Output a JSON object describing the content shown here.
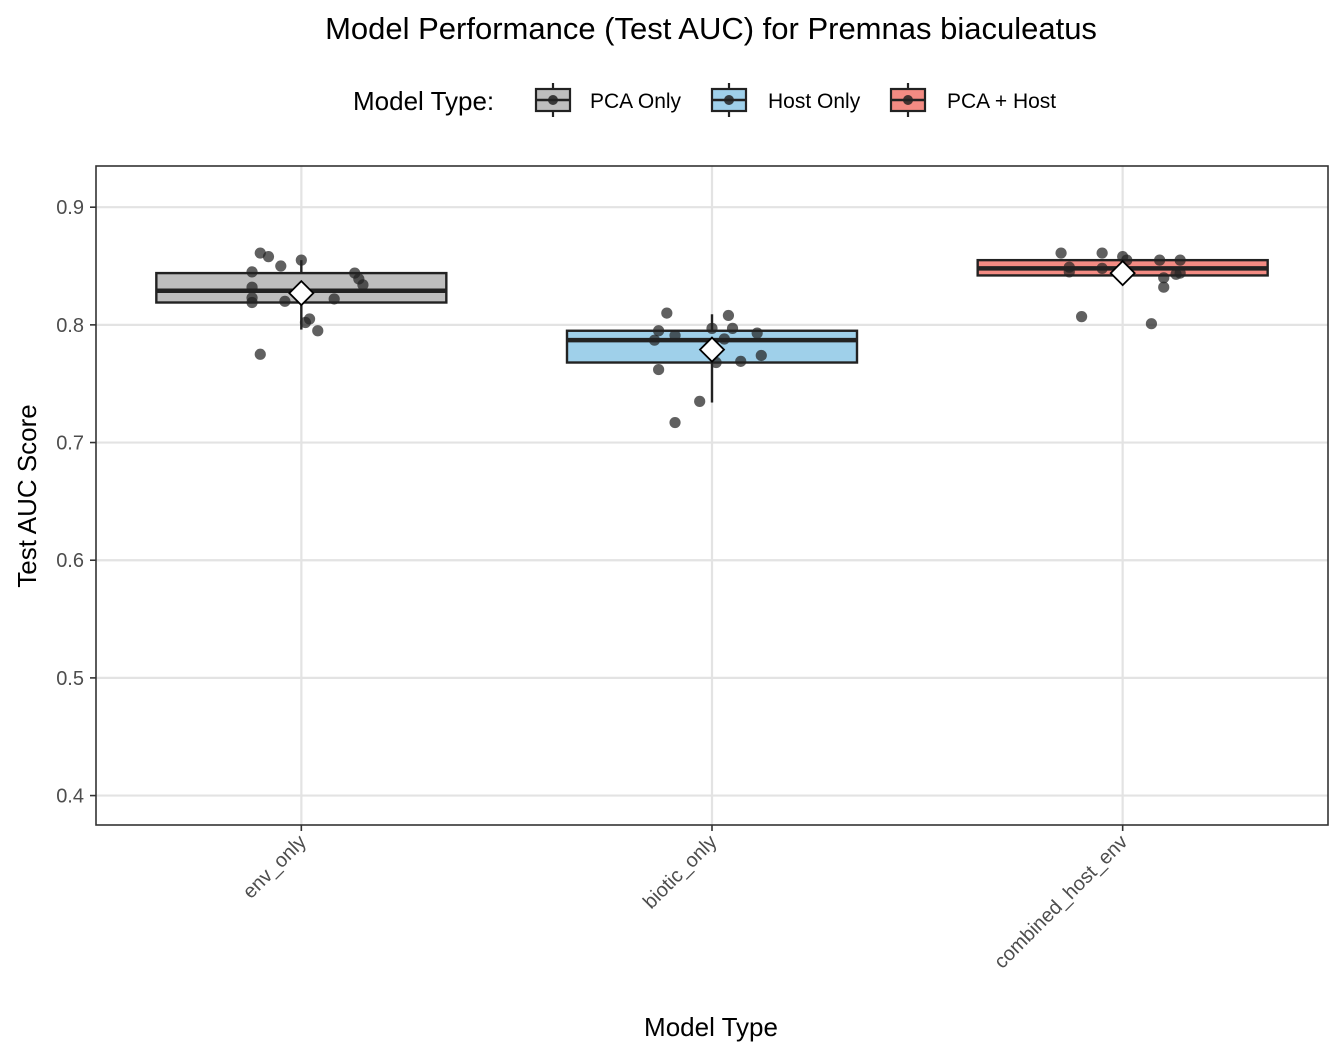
{
  "chart_data": {
    "type": "box",
    "title": "Model Performance (Test AUC) for Premnas biaculeatus",
    "xlabel": "Model Type",
    "ylabel": "Test AUC Score",
    "ylim": [
      0.375,
      0.935
    ],
    "yticks": [
      0.4,
      0.5,
      0.6,
      0.7,
      0.8,
      0.9
    ],
    "ytick_labels": [
      "0.4",
      "0.5",
      "0.6",
      "0.7",
      "0.8",
      "0.9"
    ],
    "grid": true,
    "legend": {
      "title": "Model Type:",
      "position": "top",
      "entries": [
        {
          "label": "PCA Only",
          "color": "#bebebe"
        },
        {
          "label": "Host Only",
          "color": "#9fd0ea"
        },
        {
          "label": "PCA + Host",
          "color": "#f38b83"
        }
      ]
    },
    "categories": [
      "env_only",
      "biotic_only",
      "combined_host_env"
    ],
    "boxes": [
      {
        "category": "env_only",
        "color": "#bebebe",
        "q1": 0.819,
        "median": 0.829,
        "q3": 0.844,
        "whisker_low": 0.796,
        "whisker_high": 0.855,
        "mean": 0.827
      },
      {
        "category": "biotic_only",
        "color": "#9fd0ea",
        "q1": 0.768,
        "median": 0.787,
        "q3": 0.795,
        "whisker_low": 0.734,
        "whisker_high": 0.809,
        "mean": 0.779
      },
      {
        "category": "combined_host_env",
        "color": "#f38b83",
        "q1": 0.842,
        "median": 0.848,
        "q3": 0.855,
        "whisker_low": 0.842,
        "whisker_high": 0.855,
        "mean": 0.844
      }
    ],
    "points": [
      {
        "category": "env_only",
        "jitter": -0.1,
        "y": 0.861
      },
      {
        "category": "env_only",
        "jitter": -0.08,
        "y": 0.858
      },
      {
        "category": "env_only",
        "jitter": 0.0,
        "y": 0.855
      },
      {
        "category": "env_only",
        "jitter": -0.05,
        "y": 0.85
      },
      {
        "category": "env_only",
        "jitter": -0.12,
        "y": 0.845
      },
      {
        "category": "env_only",
        "jitter": 0.13,
        "y": 0.844
      },
      {
        "category": "env_only",
        "jitter": 0.14,
        "y": 0.839
      },
      {
        "category": "env_only",
        "jitter": 0.15,
        "y": 0.834
      },
      {
        "category": "env_only",
        "jitter": -0.12,
        "y": 0.832
      },
      {
        "category": "env_only",
        "jitter": -0.12,
        "y": 0.823
      },
      {
        "category": "env_only",
        "jitter": 0.08,
        "y": 0.822
      },
      {
        "category": "env_only",
        "jitter": -0.04,
        "y": 0.82
      },
      {
        "category": "env_only",
        "jitter": -0.12,
        "y": 0.819
      },
      {
        "category": "env_only",
        "jitter": 0.02,
        "y": 0.805
      },
      {
        "category": "env_only",
        "jitter": 0.01,
        "y": 0.802
      },
      {
        "category": "env_only",
        "jitter": 0.04,
        "y": 0.795
      },
      {
        "category": "env_only",
        "jitter": -0.1,
        "y": 0.775
      },
      {
        "category": "biotic_only",
        "jitter": -0.11,
        "y": 0.81
      },
      {
        "category": "biotic_only",
        "jitter": 0.04,
        "y": 0.808
      },
      {
        "category": "biotic_only",
        "jitter": 0.05,
        "y": 0.797
      },
      {
        "category": "biotic_only",
        "jitter": 0.0,
        "y": 0.797
      },
      {
        "category": "biotic_only",
        "jitter": -0.13,
        "y": 0.795
      },
      {
        "category": "biotic_only",
        "jitter": 0.11,
        "y": 0.793
      },
      {
        "category": "biotic_only",
        "jitter": -0.09,
        "y": 0.791
      },
      {
        "category": "biotic_only",
        "jitter": 0.03,
        "y": 0.788
      },
      {
        "category": "biotic_only",
        "jitter": -0.14,
        "y": 0.787
      },
      {
        "category": "biotic_only",
        "jitter": 0.12,
        "y": 0.774
      },
      {
        "category": "biotic_only",
        "jitter": 0.07,
        "y": 0.769
      },
      {
        "category": "biotic_only",
        "jitter": 0.01,
        "y": 0.768
      },
      {
        "category": "biotic_only",
        "jitter": -0.13,
        "y": 0.762
      },
      {
        "category": "biotic_only",
        "jitter": -0.03,
        "y": 0.735
      },
      {
        "category": "biotic_only",
        "jitter": -0.09,
        "y": 0.717
      },
      {
        "category": "combined_host_env",
        "jitter": -0.15,
        "y": 0.861
      },
      {
        "category": "combined_host_env",
        "jitter": -0.05,
        "y": 0.861
      },
      {
        "category": "combined_host_env",
        "jitter": 0.0,
        "y": 0.858
      },
      {
        "category": "combined_host_env",
        "jitter": 0.01,
        "y": 0.855
      },
      {
        "category": "combined_host_env",
        "jitter": 0.09,
        "y": 0.855
      },
      {
        "category": "combined_host_env",
        "jitter": 0.14,
        "y": 0.855
      },
      {
        "category": "combined_host_env",
        "jitter": -0.13,
        "y": 0.849
      },
      {
        "category": "combined_host_env",
        "jitter": -0.05,
        "y": 0.848
      },
      {
        "category": "combined_host_env",
        "jitter": -0.13,
        "y": 0.845
      },
      {
        "category": "combined_host_env",
        "jitter": 0.13,
        "y": 0.843
      },
      {
        "category": "combined_host_env",
        "jitter": 0.14,
        "y": 0.844
      },
      {
        "category": "combined_host_env",
        "jitter": 0.1,
        "y": 0.84
      },
      {
        "category": "combined_host_env",
        "jitter": 0.1,
        "y": 0.832
      },
      {
        "category": "combined_host_env",
        "jitter": -0.1,
        "y": 0.807
      },
      {
        "category": "combined_host_env",
        "jitter": 0.07,
        "y": 0.801
      }
    ]
  }
}
